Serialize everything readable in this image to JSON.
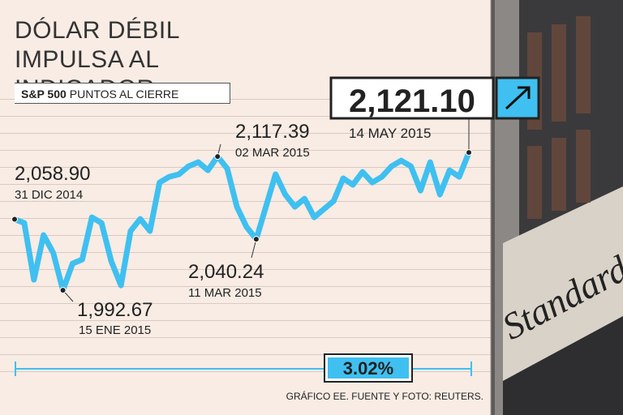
{
  "chart_data": {
    "type": "line",
    "title": "DÓLAR DÉBIL IMPULSA AL INDICADOR",
    "index_name": "S&P 500",
    "subtitle": "PUNTOS AL CIERRE",
    "color": "#3fc0f0",
    "ylim": [
      1930,
      2190
    ],
    "categories": [
      "31 DIC 2014",
      null,
      null,
      null,
      null,
      "15 ENE 2015",
      null,
      null,
      null,
      null,
      null,
      null,
      null,
      null,
      null,
      null,
      null,
      null,
      null,
      null,
      null,
      "02 MAR 2015",
      null,
      null,
      null,
      "11 MAR 2015",
      null,
      null,
      null,
      null,
      null,
      null,
      null,
      null,
      null,
      null,
      null,
      null,
      null,
      null,
      null,
      null,
      null,
      null,
      null,
      null,
      null,
      "14 MAY 2015"
    ],
    "values": [
      2058.9,
      2055.4,
      2002.5,
      2044.1,
      2027.4,
      1992.67,
      2017.6,
      2021.4,
      2060.7,
      2055.4,
      2019.9,
      1997.2,
      2047.9,
      2059.2,
      2047.9,
      2093.2,
      2098.5,
      2100.8,
      2108.3,
      2112.1,
      2104.5,
      2117.39,
      2106.1,
      2070.5,
      2051.6,
      2040.24,
      2070.5,
      2100.8,
      2081.9,
      2070.5,
      2078.1,
      2060.7,
      2068.3,
      2075.8,
      2097.0,
      2091.0,
      2103.0,
      2093.2,
      2098.5,
      2108.3,
      2113.6,
      2108.3,
      2085.6,
      2112.1,
      2081.9,
      2104.5,
      2098.5,
      2121.1
    ],
    "value_labels": [
      "2,058.90",
      null,
      null,
      null,
      null,
      "1,992.67",
      null,
      null,
      null,
      null,
      null,
      null,
      null,
      null,
      null,
      null,
      null,
      null,
      null,
      null,
      null,
      "2,117.39",
      null,
      null,
      null,
      "2,040.24",
      null,
      null,
      null,
      null,
      null,
      null,
      null,
      null,
      null,
      null,
      null,
      null,
      null,
      null,
      null,
      null,
      null,
      null,
      null,
      null,
      null,
      "2,121.10"
    ],
    "change_label": "3.02%",
    "footer": "GRÁFICO EE. FUENTE Y FOTO: REUTERS.",
    "photo_text": "Standard &"
  }
}
